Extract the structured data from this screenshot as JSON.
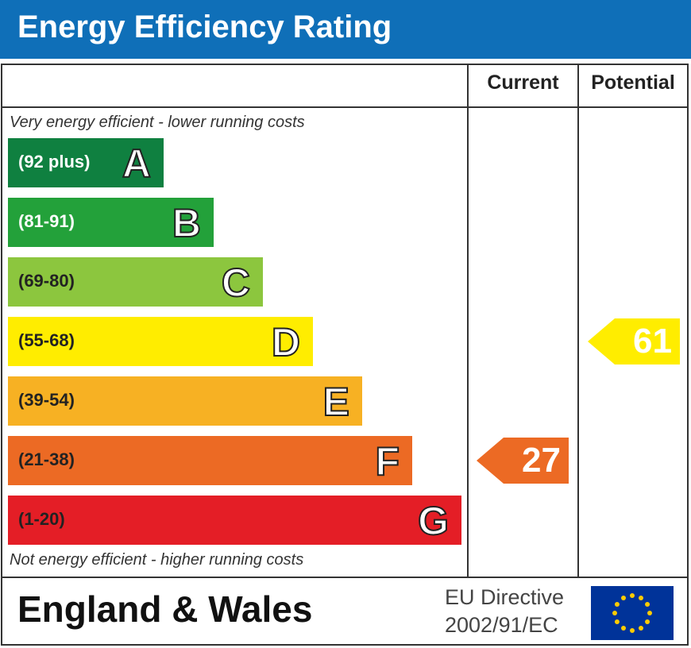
{
  "title": "Energy Efficiency Rating",
  "columns": {
    "current": "Current",
    "potential": "Potential"
  },
  "top_note": "Very energy efficient - lower running costs",
  "bottom_note": "Not energy efficient - higher running costs",
  "footer": {
    "country": "England & Wales",
    "directive_line1": "EU Directive",
    "directive_line2": "2002/91/EC",
    "flag_icon": "eu-flag-icon"
  },
  "colors": {
    "header": "#0f6fb8"
  },
  "chart_data": {
    "type": "bar",
    "bands": [
      {
        "letter": "A",
        "range": "(92 plus)",
        "color": "#0f8040",
        "text_color": "#ffffff"
      },
      {
        "letter": "B",
        "range": "(81-91)",
        "color": "#23a13a",
        "text_color": "#ffffff"
      },
      {
        "letter": "C",
        "range": "(69-80)",
        "color": "#8cc63e",
        "text_color": "#222222"
      },
      {
        "letter": "D",
        "range": "(55-68)",
        "color": "#ffed00",
        "text_color": "#222222"
      },
      {
        "letter": "E",
        "range": "(39-54)",
        "color": "#f7b123",
        "text_color": "#222222"
      },
      {
        "letter": "F",
        "range": "(21-38)",
        "color": "#ec6a24",
        "text_color": "#222222"
      },
      {
        "letter": "G",
        "range": "(1-20)",
        "color": "#e41e26",
        "text_color": "#222222"
      }
    ],
    "current": {
      "value": 27,
      "band": "F",
      "color": "#ec6a24"
    },
    "potential": {
      "value": 61,
      "band": "D",
      "color": "#ffed00"
    }
  }
}
